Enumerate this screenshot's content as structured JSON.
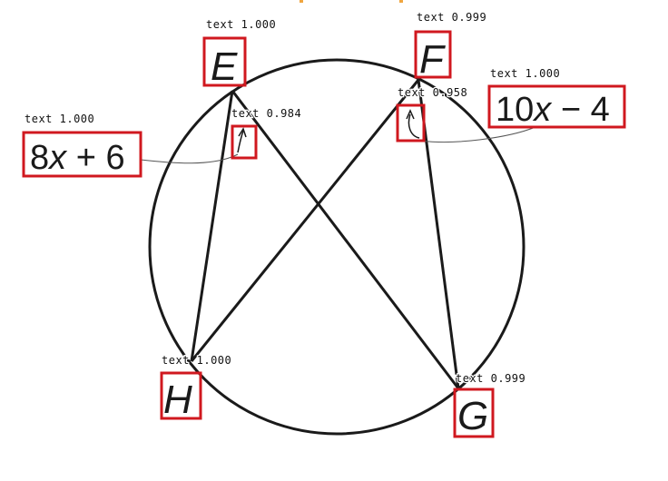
{
  "colors": {
    "box": "#d0181f",
    "ink": "#1a1a1a",
    "accent_tick": "#f0a640"
  },
  "points": {
    "E": "E",
    "F": "F",
    "G": "G",
    "H": "H"
  },
  "expressions": {
    "left": {
      "coef": "8",
      "var": "x",
      "op": " + ",
      "const": "6"
    },
    "right": {
      "coef": "10",
      "var": "x",
      "op": " − ",
      "const": "4"
    }
  },
  "detections": {
    "E": "text 1.000",
    "F": "text 0.999",
    "G": "text 0.999",
    "H": "text 1.000",
    "expr_left": "text 1.000",
    "expr_right": "text 1.000",
    "arc_left": "text 0.984",
    "arc_right": "text 0.958"
  }
}
